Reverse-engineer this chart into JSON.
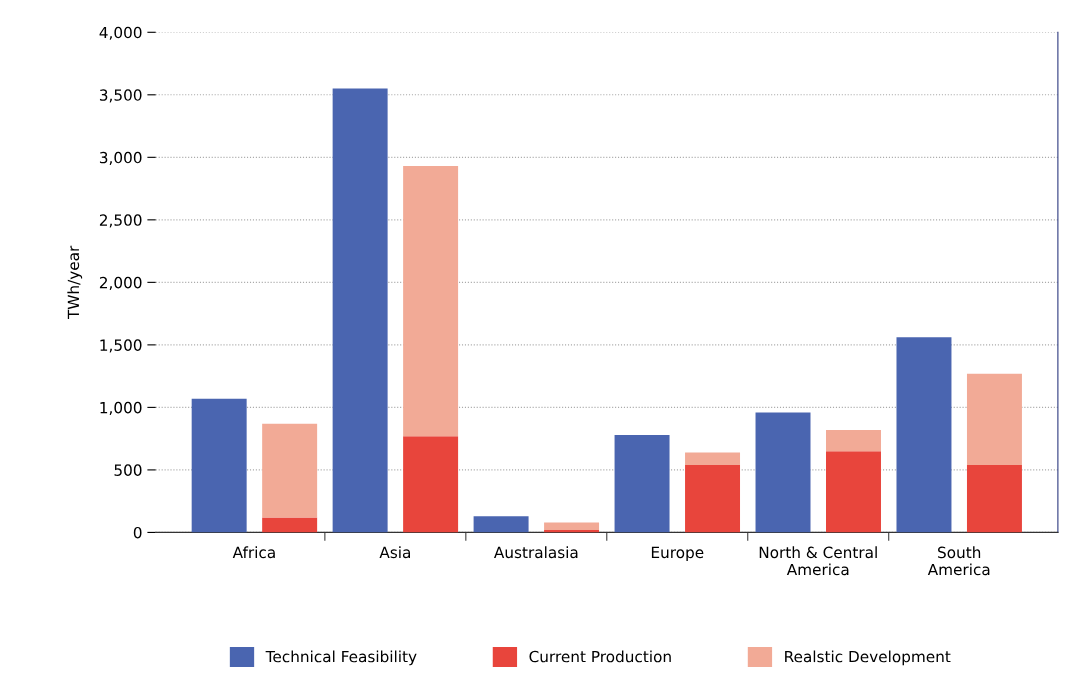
{
  "chart_data": {
    "type": "bar",
    "ylabel": "TWh/year",
    "categories": [
      "Africa",
      null,
      "Asia",
      null,
      "Australasia",
      null,
      "Europe",
      null,
      "North & Central\nAmerica",
      null,
      "South\nAmerica",
      null
    ],
    "series": [
      {
        "name": "Technical Feasibility",
        "color": "#4a65b0",
        "values": [
          1070,
          null,
          3550,
          null,
          130,
          null,
          780,
          null,
          960,
          null,
          1560,
          null
        ]
      },
      {
        "name": "Current Production",
        "color": "#e8453c",
        "values": [
          null,
          120,
          null,
          770,
          null,
          20,
          null,
          540,
          null,
          650,
          null,
          540
        ]
      },
      {
        "name": "Realstic Development",
        "color": "#f2aa96",
        "values": [
          null,
          750,
          null,
          2160,
          null,
          60,
          null,
          100,
          null,
          170,
          null,
          730
        ]
      }
    ],
    "stacked": true,
    "ylim": [
      0,
      4000
    ],
    "yticks": [
      0,
      {
        "value": 500,
        "label": "500"
      },
      {
        "value": 1000,
        "label": "1,000"
      },
      {
        "value": 1500,
        "label": "1,500"
      },
      {
        "value": 2000,
        "label": "2,000"
      },
      {
        "value": 2500,
        "label": "2,500"
      },
      {
        "value": 3000,
        "label": "3,000"
      },
      {
        "value": 3500,
        "label": "3,500"
      },
      {
        "value": 4000,
        "label": "4,000"
      }
    ],
    "grid": "y",
    "legend": "bottom"
  }
}
